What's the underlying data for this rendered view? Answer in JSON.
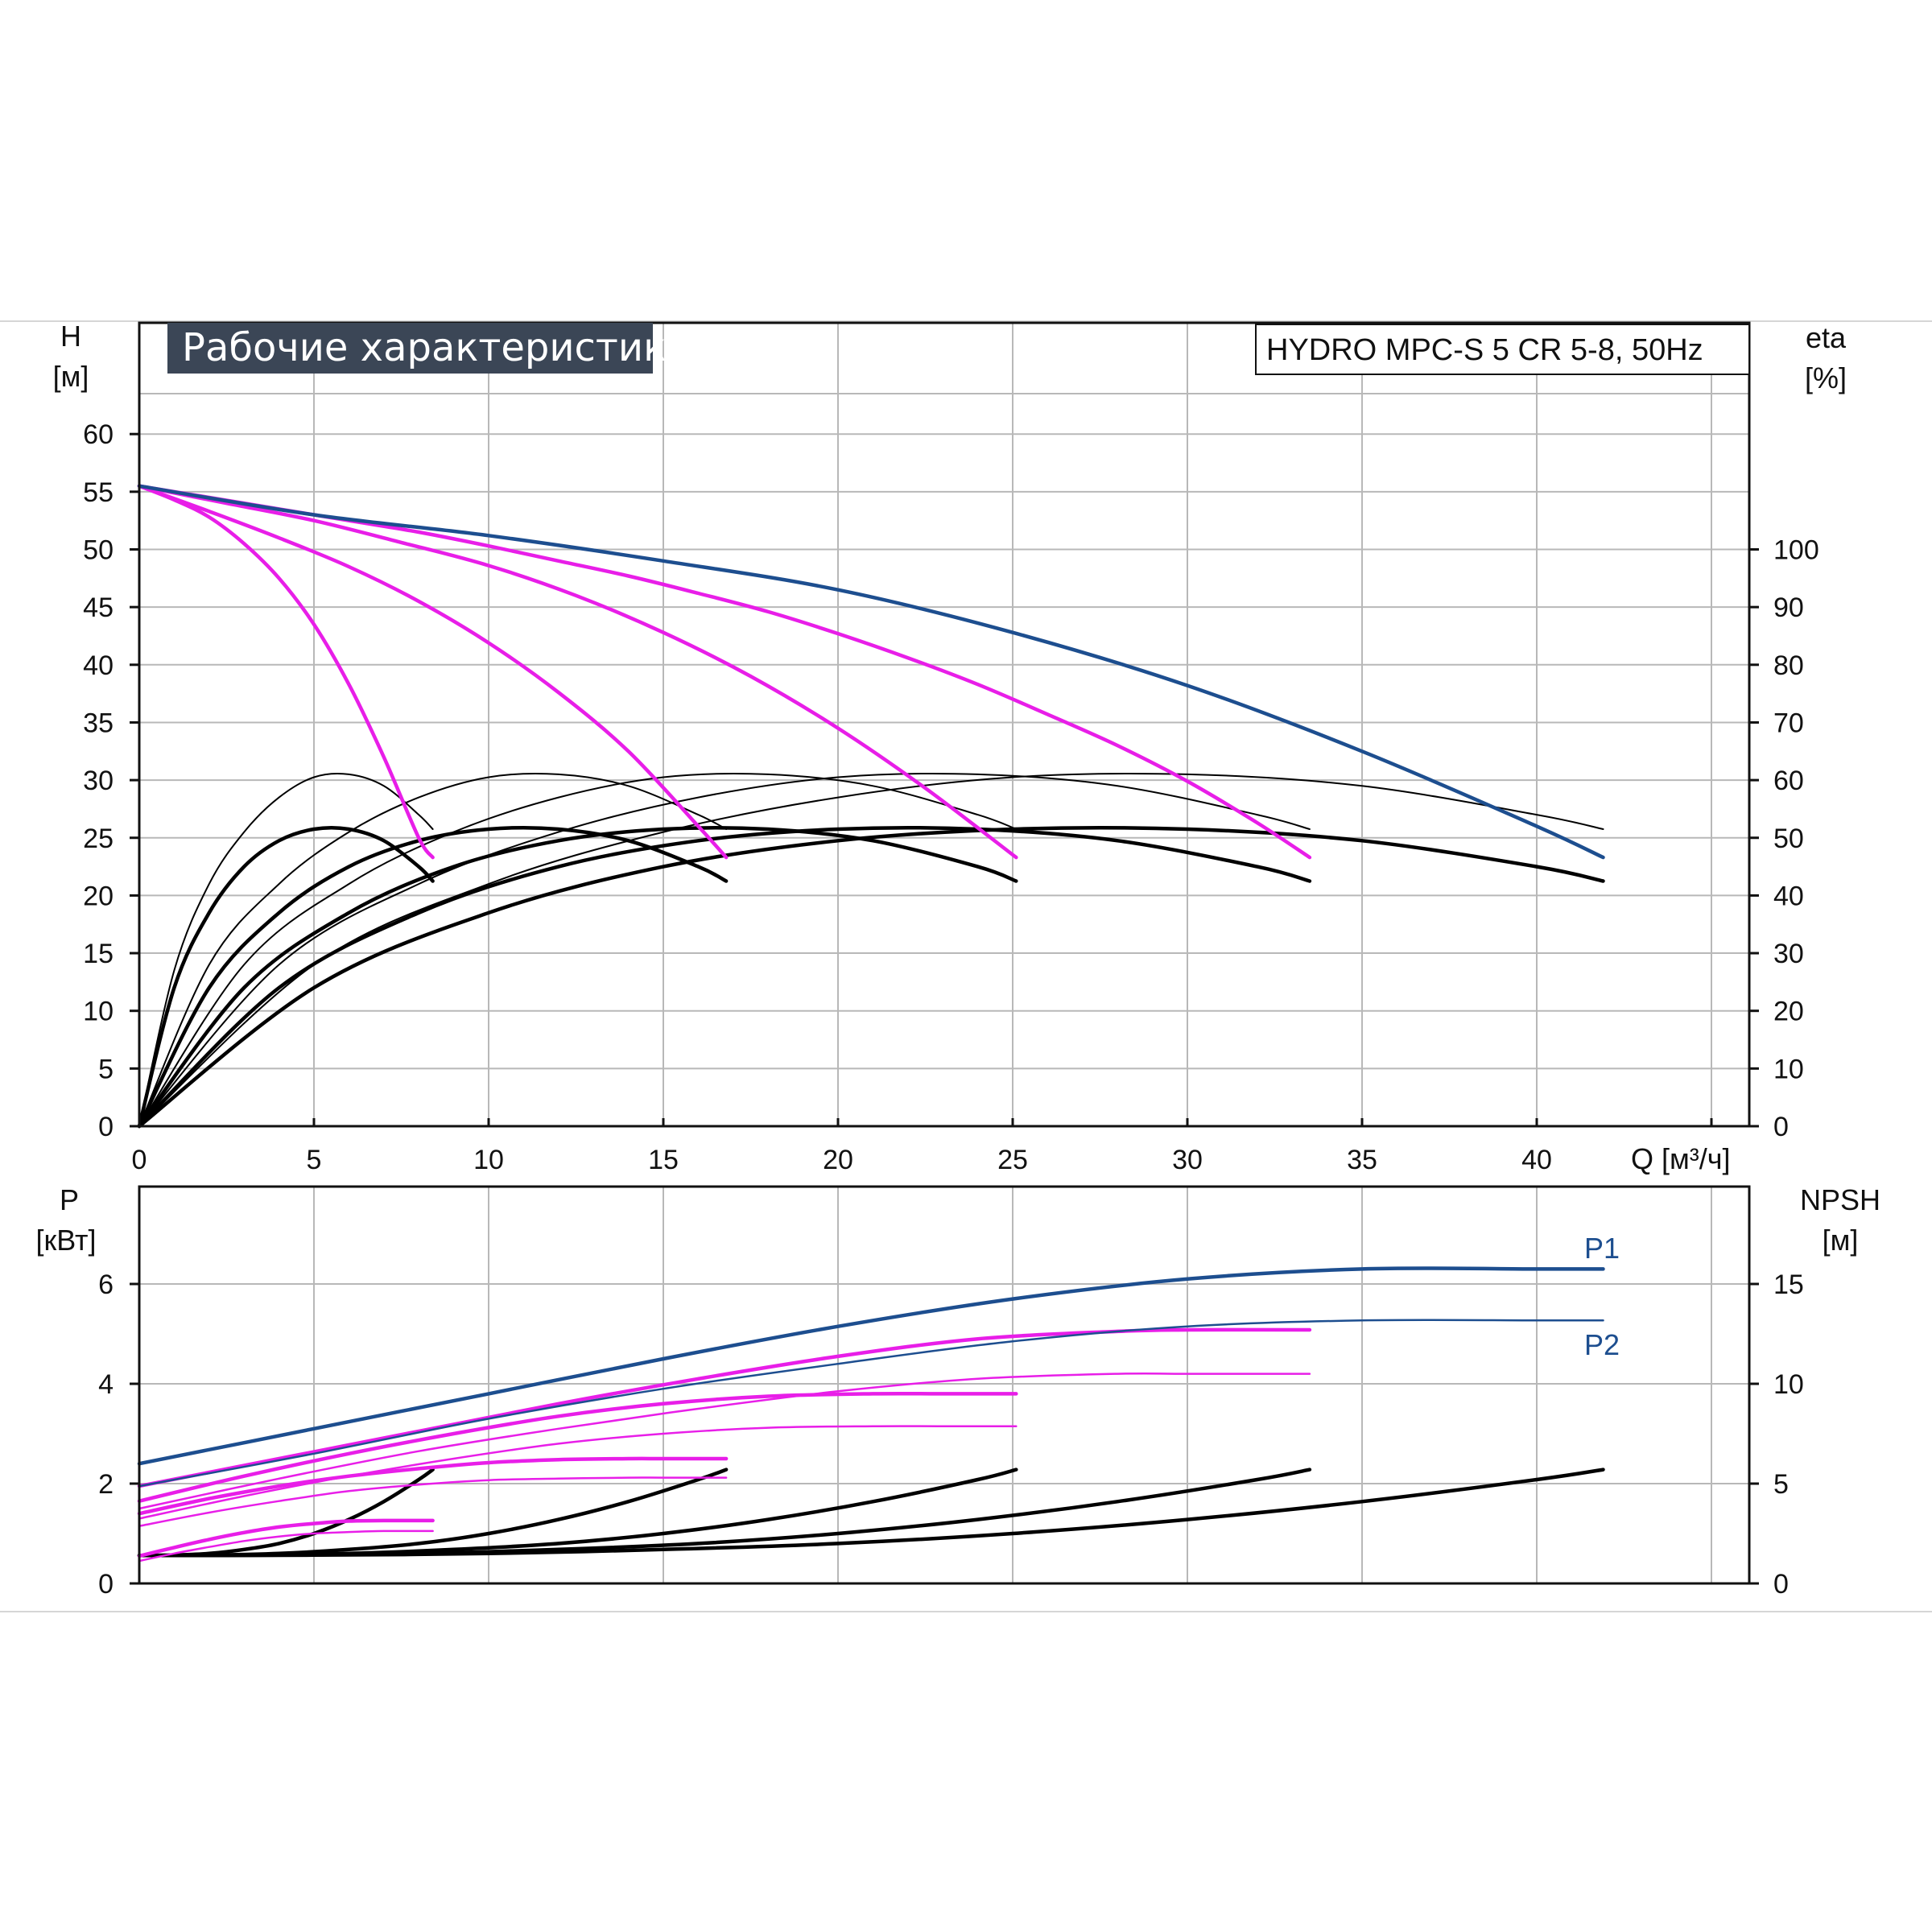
{
  "chart_data": [
    {
      "type": "line",
      "title": "Рабочие характеристики",
      "model": "HYDRO MPC-S 5 CR 5-8, 50Hz",
      "y_label": "H",
      "y_unit": "[м]",
      "y2_label": "eta",
      "y2_unit": "[%]",
      "x_label": "Q [м³/ч]",
      "xlim": [
        0,
        46
      ],
      "ylim": [
        0,
        65
      ],
      "y2lim": [
        0,
        130
      ],
      "x_ticks": [
        "0",
        "5",
        "10",
        "15",
        "20",
        "25",
        "30",
        "35",
        "40"
      ],
      "y_ticks": [
        "0",
        "5",
        "10",
        "15",
        "20",
        "25",
        "30",
        "35",
        "40",
        "45",
        "50",
        "55",
        "60"
      ],
      "y2_ticks": [
        "0",
        "10",
        "20",
        "30",
        "40",
        "50",
        "60",
        "70",
        "80",
        "90",
        "100"
      ],
      "grid": true,
      "colors": {
        "max_curve": "#1d4e8f",
        "pump_curve": "#e81ee8",
        "efficiency": "#000000"
      },
      "series": [
        {
          "group": "head_max",
          "x": [
            0,
            5,
            10,
            15,
            20,
            25,
            30,
            35,
            40,
            41.9
          ],
          "y": [
            55.5,
            53,
            51.2,
            49,
            46.5,
            42.8,
            38.2,
            32.5,
            26,
            23.3
          ]
        },
        {
          "group": "head_pump",
          "x": [
            0,
            2,
            4,
            6,
            8,
            10,
            12,
            14,
            16,
            18,
            20,
            22,
            24,
            26,
            28,
            30,
            32,
            33.5
          ],
          "y": [
            55.5,
            54.5,
            53.5,
            52.5,
            51.5,
            50.3,
            49,
            47.7,
            46.2,
            44.6,
            42.7,
            40.6,
            38.3,
            35.7,
            33,
            29.9,
            26.3,
            23.3
          ]
        },
        {
          "group": "head_pump",
          "x": [
            0,
            2.5,
            5,
            7.5,
            10,
            12.5,
            15,
            17.5,
            20,
            22.5,
            25.1
          ],
          "y": [
            55.5,
            54,
            52.5,
            50.6,
            48.6,
            46,
            42.8,
            39,
            34.5,
            29.3,
            23.3
          ]
        },
        {
          "group": "head_pump",
          "x": [
            0,
            2,
            4,
            6,
            8,
            10,
            12,
            14,
            16,
            16.8
          ],
          "y": [
            55.5,
            53.3,
            51,
            48.5,
            45.5,
            41.9,
            37.6,
            32.5,
            26,
            23.3
          ]
        },
        {
          "group": "head_pump",
          "x": [
            0,
            1,
            2,
            3,
            4,
            5,
            6,
            7,
            8,
            8.4
          ],
          "y": [
            55.5,
            54.3,
            52.8,
            50.5,
            47.5,
            43.5,
            38.3,
            32,
            25,
            23.3
          ]
        },
        {
          "group": "eta_thin",
          "x": [
            0,
            1,
            2,
            3,
            4,
            5,
            6,
            7,
            8,
            8.4
          ],
          "y": [
            0,
            27,
            42,
            51,
            57,
            60.5,
            61,
            59,
            54,
            51.5
          ]
        },
        {
          "group": "eta_thin",
          "x": [
            0,
            2,
            4,
            6,
            8,
            10,
            12,
            14,
            16,
            16.8
          ],
          "y": [
            0,
            28,
            42,
            51,
            57,
            60.5,
            61,
            59,
            54,
            51.5
          ]
        },
        {
          "group": "eta_thin",
          "x": [
            0,
            3,
            6,
            9,
            12,
            15,
            18,
            21,
            24,
            25.1
          ],
          "y": [
            0,
            28,
            42,
            51,
            57,
            60.5,
            61,
            59,
            54,
            51.5
          ]
        },
        {
          "group": "eta_thin",
          "x": [
            0,
            4,
            8,
            12,
            16,
            20,
            24,
            28,
            32,
            33.5
          ],
          "y": [
            0,
            28,
            42,
            51,
            57,
            60.5,
            61,
            59,
            54,
            51.5
          ]
        },
        {
          "group": "eta_thin",
          "x": [
            0,
            5,
            10,
            15,
            20,
            25,
            30,
            35,
            40,
            41.9
          ],
          "y": [
            0,
            28,
            42,
            51,
            57,
            60.5,
            61,
            59,
            54,
            51.5
          ]
        },
        {
          "group": "eta_thick",
          "x": [
            0,
            1,
            2,
            3,
            4,
            5,
            6,
            7,
            8,
            8.4
          ],
          "y": [
            0,
            24,
            37,
            45,
            49.5,
            51.5,
            51.5,
            49.5,
            45,
            42.5
          ]
        },
        {
          "group": "eta_thick",
          "x": [
            0,
            2,
            4,
            6,
            8,
            10,
            12,
            14,
            16,
            16.8
          ],
          "y": [
            0,
            24,
            37,
            45,
            49.5,
            51.5,
            51.5,
            49.5,
            45,
            42.5
          ]
        },
        {
          "group": "eta_thick",
          "x": [
            0,
            3,
            6,
            9,
            12,
            15,
            18,
            21,
            24,
            25.1
          ],
          "y": [
            0,
            24,
            37,
            45,
            49.5,
            51.5,
            51.5,
            49.5,
            45,
            42.5
          ]
        },
        {
          "group": "eta_thick",
          "x": [
            0,
            4,
            8,
            12,
            16,
            20,
            24,
            28,
            32,
            33.5
          ],
          "y": [
            0,
            24,
            37,
            45,
            49.5,
            51.5,
            51.5,
            49.5,
            45,
            42.5
          ]
        },
        {
          "group": "eta_thick",
          "x": [
            0,
            5,
            10,
            15,
            20,
            25,
            30,
            35,
            40,
            41.9
          ],
          "y": [
            0,
            24,
            37,
            45,
            49.5,
            51.5,
            51.5,
            49.5,
            45,
            42.5
          ]
        }
      ]
    },
    {
      "type": "line",
      "y_label": "P",
      "y_unit": "[кВт]",
      "y2_label": "NPSH",
      "y2_unit": "[м]",
      "xlim": [
        0,
        46
      ],
      "ylim": [
        0,
        8
      ],
      "y2lim": [
        0,
        20
      ],
      "y_ticks": [
        "0",
        "2",
        "4",
        "6"
      ],
      "y2_ticks": [
        "0",
        "5",
        "10",
        "15"
      ],
      "grid": true,
      "labels": {
        "p1": "P1",
        "p2": "P2"
      },
      "series": [
        {
          "group": "p1_max",
          "x": [
            0,
            5,
            10,
            15,
            20,
            25,
            30,
            35,
            40,
            41.9
          ],
          "y": [
            2.4,
            3.1,
            3.8,
            4.5,
            5.15,
            5.7,
            6.1,
            6.3,
            6.3,
            6.3
          ]
        },
        {
          "group": "p2_max",
          "x": [
            0,
            5,
            10,
            15,
            20,
            25,
            30,
            35,
            40,
            41.9
          ],
          "y": [
            1.95,
            2.6,
            3.3,
            3.9,
            4.4,
            4.85,
            5.15,
            5.27,
            5.27,
            5.27
          ]
        },
        {
          "group": "p1_pump",
          "x": [
            0,
            4,
            8,
            12,
            16,
            20,
            24,
            28,
            30,
            33.5
          ],
          "y": [
            1.95,
            2.5,
            3.05,
            3.6,
            4.1,
            4.55,
            4.9,
            5.05,
            5.08,
            5.08
          ]
        },
        {
          "group": "p2_pump",
          "x": [
            0,
            4,
            8,
            12,
            16,
            20,
            24,
            28,
            30,
            33.5
          ],
          "y": [
            1.5,
            2.1,
            2.65,
            3.1,
            3.5,
            3.85,
            4.1,
            4.2,
            4.2,
            4.2
          ]
        },
        {
          "group": "p1_pump",
          "x": [
            0,
            3,
            6,
            9,
            12,
            15,
            18,
            21,
            23,
            25.1
          ],
          "y": [
            1.65,
            2.15,
            2.6,
            3.0,
            3.35,
            3.6,
            3.75,
            3.8,
            3.8,
            3.8
          ]
        },
        {
          "group": "p2_pump",
          "x": [
            0,
            3,
            6,
            9,
            12,
            15,
            18,
            21,
            23,
            25.1
          ],
          "y": [
            1.3,
            1.75,
            2.15,
            2.5,
            2.8,
            3.0,
            3.12,
            3.15,
            3.15,
            3.15
          ]
        },
        {
          "group": "p1_pump",
          "x": [
            0,
            2,
            4,
            6,
            8,
            10,
            12,
            14,
            15,
            16.8
          ],
          "y": [
            1.4,
            1.7,
            1.95,
            2.15,
            2.3,
            2.42,
            2.48,
            2.5,
            2.5,
            2.5
          ]
        },
        {
          "group": "p2_pump",
          "x": [
            0,
            2,
            4,
            6,
            8,
            10,
            12,
            14,
            15,
            16.8
          ],
          "y": [
            1.15,
            1.42,
            1.65,
            1.85,
            1.98,
            2.07,
            2.1,
            2.12,
            2.12,
            2.12
          ]
        },
        {
          "group": "p1_pump",
          "x": [
            0,
            1,
            2,
            3,
            4,
            5,
            6,
            7,
            8,
            8.4
          ],
          "y": [
            0.55,
            0.72,
            0.88,
            1.02,
            1.13,
            1.2,
            1.25,
            1.26,
            1.26,
            1.26
          ]
        },
        {
          "group": "p2_pump",
          "x": [
            0,
            1,
            2,
            3,
            4,
            5,
            6,
            7,
            8,
            8.4
          ],
          "y": [
            0.45,
            0.6,
            0.73,
            0.85,
            0.94,
            1.0,
            1.03,
            1.05,
            1.05,
            1.05
          ]
        },
        {
          "group": "npsh",
          "x": [
            0,
            1,
            2,
            3,
            4,
            5,
            6,
            7,
            8,
            8.4
          ],
          "y": [
            1.4,
            1.42,
            1.5,
            1.7,
            2.0,
            2.5,
            3.2,
            4.1,
            5.2,
            5.7
          ]
        },
        {
          "group": "npsh",
          "x": [
            0,
            2,
            4,
            6,
            8,
            10,
            12,
            14,
            16,
            16.8
          ],
          "y": [
            1.4,
            1.42,
            1.5,
            1.7,
            2.0,
            2.5,
            3.2,
            4.1,
            5.2,
            5.7
          ]
        },
        {
          "group": "npsh",
          "x": [
            0,
            3,
            6,
            9,
            12,
            15,
            18,
            21,
            24,
            25.1
          ],
          "y": [
            1.4,
            1.42,
            1.5,
            1.7,
            2.0,
            2.5,
            3.2,
            4.1,
            5.2,
            5.7
          ]
        },
        {
          "group": "npsh",
          "x": [
            0,
            4,
            8,
            12,
            16,
            20,
            24,
            28,
            32,
            33.5
          ],
          "y": [
            1.4,
            1.42,
            1.5,
            1.7,
            2.0,
            2.5,
            3.2,
            4.1,
            5.2,
            5.7
          ]
        },
        {
          "group": "npsh",
          "x": [
            0,
            5,
            10,
            15,
            20,
            25,
            30,
            35,
            40,
            41.9
          ],
          "y": [
            1.4,
            1.42,
            1.5,
            1.7,
            2.0,
            2.5,
            3.2,
            4.1,
            5.2,
            5.7
          ]
        }
      ]
    }
  ]
}
